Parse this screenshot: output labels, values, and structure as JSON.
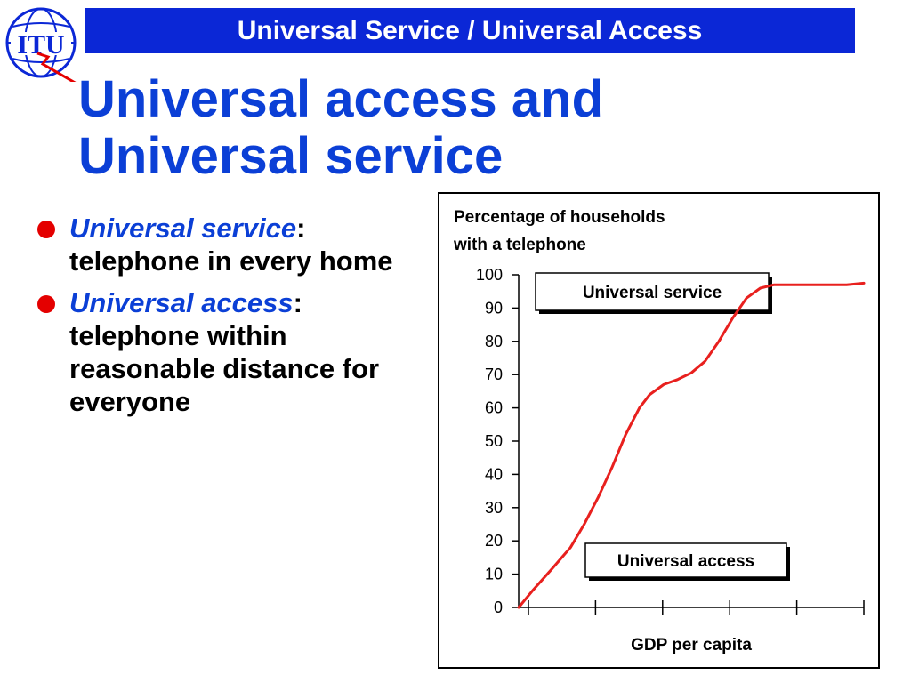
{
  "header": {
    "title": "Universal Service / Universal Access"
  },
  "logo": {
    "text": "ITU",
    "icon": "itu-globe-logo"
  },
  "slide": {
    "title_line1": "Universal access and",
    "title_line2": "Universal service",
    "bullets": [
      {
        "term": "Universal service",
        "sep": ":",
        "text": "telephone in every home"
      },
      {
        "term": "Universal access",
        "sep": ":",
        "text": "telephone within reasonable distance for everyone"
      }
    ]
  },
  "colors": {
    "header_bg": "#0b27d6",
    "title": "#0b3fd6",
    "bullet": "#e40000",
    "curve": "#e8201e"
  },
  "chart_data": {
    "type": "line",
    "title_line1": "Percentage of households",
    "title_line2": "with a telephone",
    "xlabel": "GDP per capita",
    "ylabel": "",
    "ylim": [
      0,
      100
    ],
    "yticks": [
      "0",
      "10",
      "20",
      "30",
      "40",
      "50",
      "60",
      "70",
      "80",
      "90",
      "100"
    ],
    "x_tick_count": 6,
    "grid": false,
    "annotations": [
      {
        "text": "Universal service"
      },
      {
        "text": "Universal access"
      }
    ],
    "series": [
      {
        "color": "#e8201e",
        "x": [
          0,
          0.04,
          0.1,
          0.15,
          0.19,
          0.23,
          0.27,
          0.31,
          0.35,
          0.38,
          0.42,
          0.46,
          0.5,
          0.54,
          0.58,
          0.62,
          0.66,
          0.7,
          0.74,
          0.78,
          0.82,
          0.86,
          0.9,
          0.95,
          1.0
        ],
        "y": [
          0,
          5,
          12,
          18,
          25,
          33,
          42,
          52,
          60,
          64,
          67,
          68.5,
          70.5,
          74,
          80,
          87,
          93,
          96,
          97,
          97,
          97,
          97,
          97,
          97,
          97.5
        ]
      }
    ]
  }
}
